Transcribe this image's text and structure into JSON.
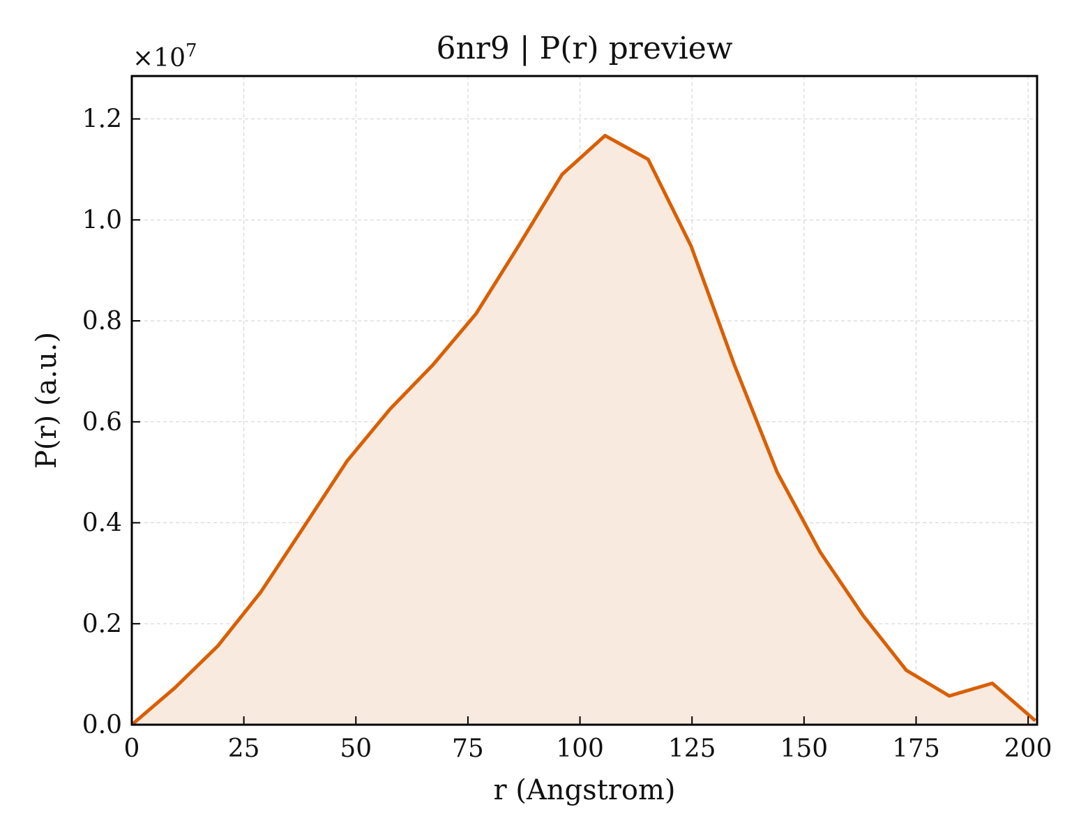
{
  "chart_data": {
    "type": "area",
    "title": "6nr9 | P(r) preview",
    "xlabel": "r (Angstrom)",
    "ylabel": "P(r) (a.u.)",
    "y_multiplier_label": "×10",
    "y_multiplier_exponent": "7",
    "xlim": [
      0,
      202
    ],
    "ylim": [
      0,
      1.285
    ],
    "x_ticks": [
      0,
      25,
      50,
      75,
      100,
      125,
      150,
      175,
      200
    ],
    "x_tick_labels": [
      "0",
      "25",
      "50",
      "75",
      "100",
      "125",
      "150",
      "175",
      "200"
    ],
    "y_ticks": [
      0.0,
      0.2,
      0.4,
      0.6,
      0.8,
      1.0,
      1.2
    ],
    "y_tick_labels": [
      "0.0",
      "0.2",
      "0.4",
      "0.6",
      "0.8",
      "1.0",
      "1.2"
    ],
    "grid": true,
    "colors": {
      "line": "#d95f02",
      "fill": "#f9eadf"
    },
    "series": [
      {
        "x": [
          0,
          9.6,
          19.2,
          28.8,
          38.4,
          48.0,
          57.6,
          67.2,
          76.8,
          86.4,
          96.0,
          105.6,
          115.2,
          124.8,
          134.4,
          144.0,
          153.6,
          163.2,
          172.8,
          182.4,
          192.0,
          201.6
        ],
        "y": [
          0.0,
          0.073,
          0.156,
          0.263,
          0.392,
          0.522,
          0.625,
          0.713,
          0.814,
          0.95,
          1.09,
          1.167,
          1.12,
          0.948,
          0.714,
          0.5,
          0.342,
          0.216,
          0.108,
          0.057,
          0.082,
          0.008
        ]
      }
    ]
  }
}
